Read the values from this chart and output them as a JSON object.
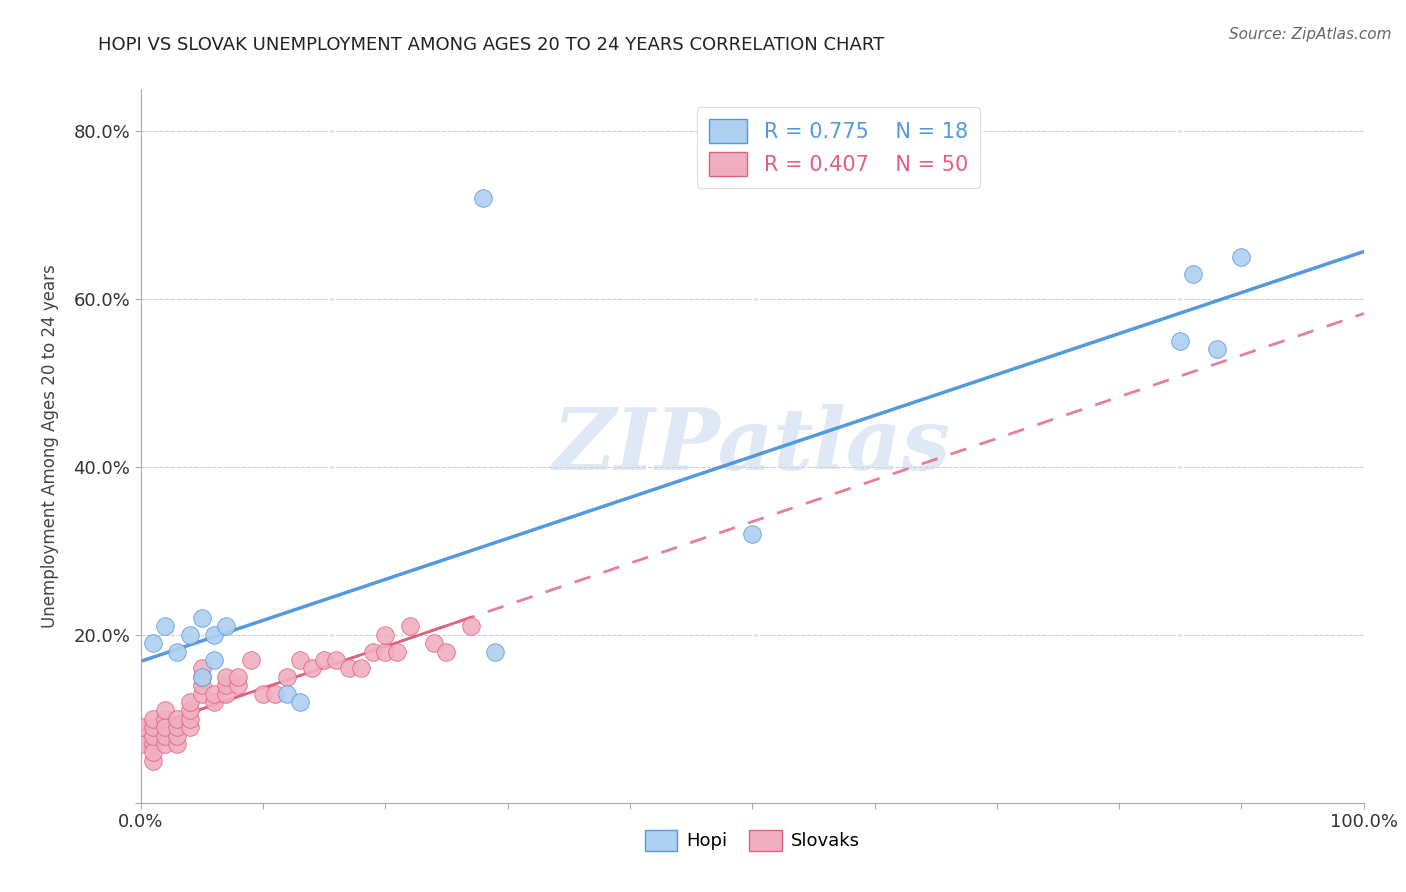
{
  "title": "HOPI VS SLOVAK UNEMPLOYMENT AMONG AGES 20 TO 24 YEARS CORRELATION CHART",
  "source": "Source: ZipAtlas.com",
  "ylabel": "Unemployment Among Ages 20 to 24 years",
  "xlim": [
    0.0,
    1.0
  ],
  "ylim": [
    0.0,
    0.85
  ],
  "x_ticks": [
    0.0,
    0.1,
    0.2,
    0.3,
    0.4,
    0.5,
    0.6,
    0.7,
    0.8,
    0.9,
    1.0
  ],
  "x_tick_labels": [
    "0.0%",
    "",
    "",
    "",
    "",
    "",
    "",
    "",
    "",
    "",
    "100.0%"
  ],
  "y_ticks": [
    0.0,
    0.2,
    0.4,
    0.6,
    0.8
  ],
  "y_tick_labels": [
    "",
    "20.0%",
    "40.0%",
    "60.0%",
    "80.0%"
  ],
  "hopi_R": 0.775,
  "hopi_N": 18,
  "slovak_R": 0.407,
  "slovak_N": 50,
  "hopi_color": "#aecff0",
  "slovak_color": "#f0afc0",
  "hopi_line_color": "#5599dd",
  "slovak_line_color": "#e06080",
  "hopi_x": [
    0.01,
    0.02,
    0.03,
    0.04,
    0.05,
    0.05,
    0.06,
    0.06,
    0.07,
    0.12,
    0.13,
    0.28,
    0.29,
    0.5,
    0.85,
    0.86,
    0.88,
    0.9
  ],
  "hopi_y": [
    0.19,
    0.21,
    0.18,
    0.2,
    0.15,
    0.22,
    0.2,
    0.17,
    0.21,
    0.13,
    0.12,
    0.72,
    0.18,
    0.32,
    0.55,
    0.63,
    0.54,
    0.65
  ],
  "slovak_x": [
    0.0,
    0.0,
    0.01,
    0.01,
    0.01,
    0.01,
    0.01,
    0.01,
    0.02,
    0.02,
    0.02,
    0.02,
    0.02,
    0.03,
    0.03,
    0.03,
    0.03,
    0.04,
    0.04,
    0.04,
    0.04,
    0.05,
    0.05,
    0.05,
    0.05,
    0.06,
    0.06,
    0.07,
    0.07,
    0.07,
    0.08,
    0.08,
    0.09,
    0.1,
    0.11,
    0.12,
    0.13,
    0.14,
    0.15,
    0.16,
    0.17,
    0.18,
    0.19,
    0.2,
    0.2,
    0.21,
    0.22,
    0.24,
    0.25,
    0.27
  ],
  "slovak_y": [
    0.07,
    0.09,
    0.05,
    0.07,
    0.06,
    0.08,
    0.09,
    0.1,
    0.1,
    0.07,
    0.08,
    0.09,
    0.11,
    0.07,
    0.08,
    0.09,
    0.1,
    0.09,
    0.1,
    0.11,
    0.12,
    0.13,
    0.14,
    0.15,
    0.16,
    0.12,
    0.13,
    0.13,
    0.14,
    0.15,
    0.14,
    0.15,
    0.17,
    0.13,
    0.13,
    0.15,
    0.17,
    0.16,
    0.17,
    0.17,
    0.16,
    0.16,
    0.18,
    0.18,
    0.2,
    0.18,
    0.21,
    0.19,
    0.18,
    0.21
  ],
  "watermark_text": "ZIPatlas",
  "watermark_color": "#c5d8ee",
  "watermark_alpha": 0.55
}
